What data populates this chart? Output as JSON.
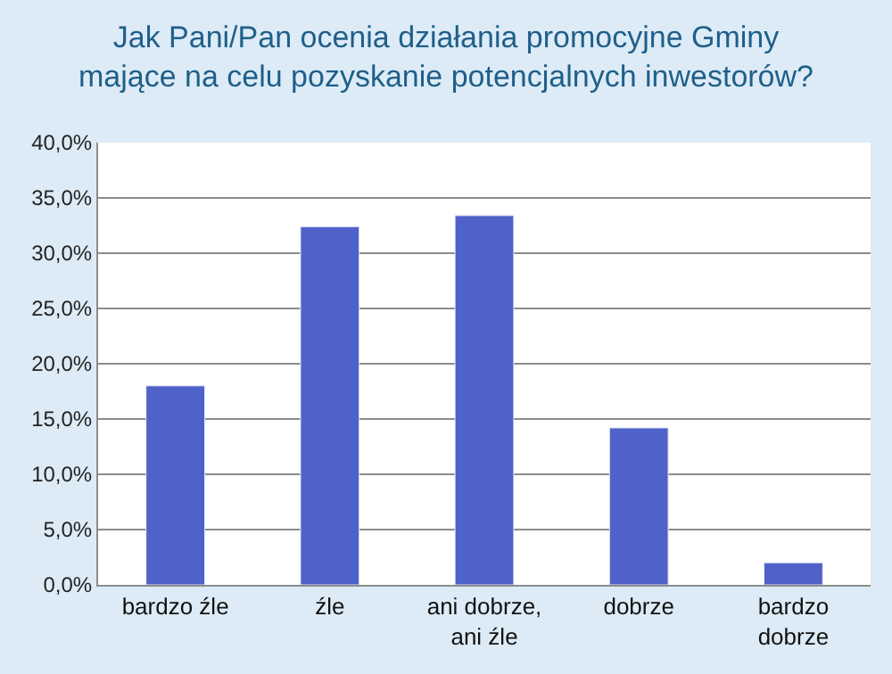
{
  "chart_data": {
    "type": "bar",
    "title": "Jak Pani/Pan ocenia działania promocyjne Gminy mające na celu pozyskanie potencjalnych inwestorów?",
    "categories": [
      "bardzo źle",
      "źle",
      "ani dobrze, ani źle",
      "dobrze",
      "bardzo dobrze"
    ],
    "values": [
      18.0,
      32.4,
      33.4,
      14.2,
      2.0
    ],
    "color": "#4f62c9",
    "ylim": [
      0,
      40
    ],
    "yticks": [
      {
        "value": 0,
        "label": "0,0%"
      },
      {
        "value": 5,
        "label": "5,0%"
      },
      {
        "value": 10,
        "label": "10,0%"
      },
      {
        "value": 15,
        "label": "15,0%"
      },
      {
        "value": 20,
        "label": "20,0%"
      },
      {
        "value": 25,
        "label": "25,0%"
      },
      {
        "value": 30,
        "label": "30,0%"
      },
      {
        "value": 35,
        "label": "35,0%"
      },
      {
        "value": 40,
        "label": "40,0%"
      }
    ],
    "grid": "y",
    "legend": false
  }
}
